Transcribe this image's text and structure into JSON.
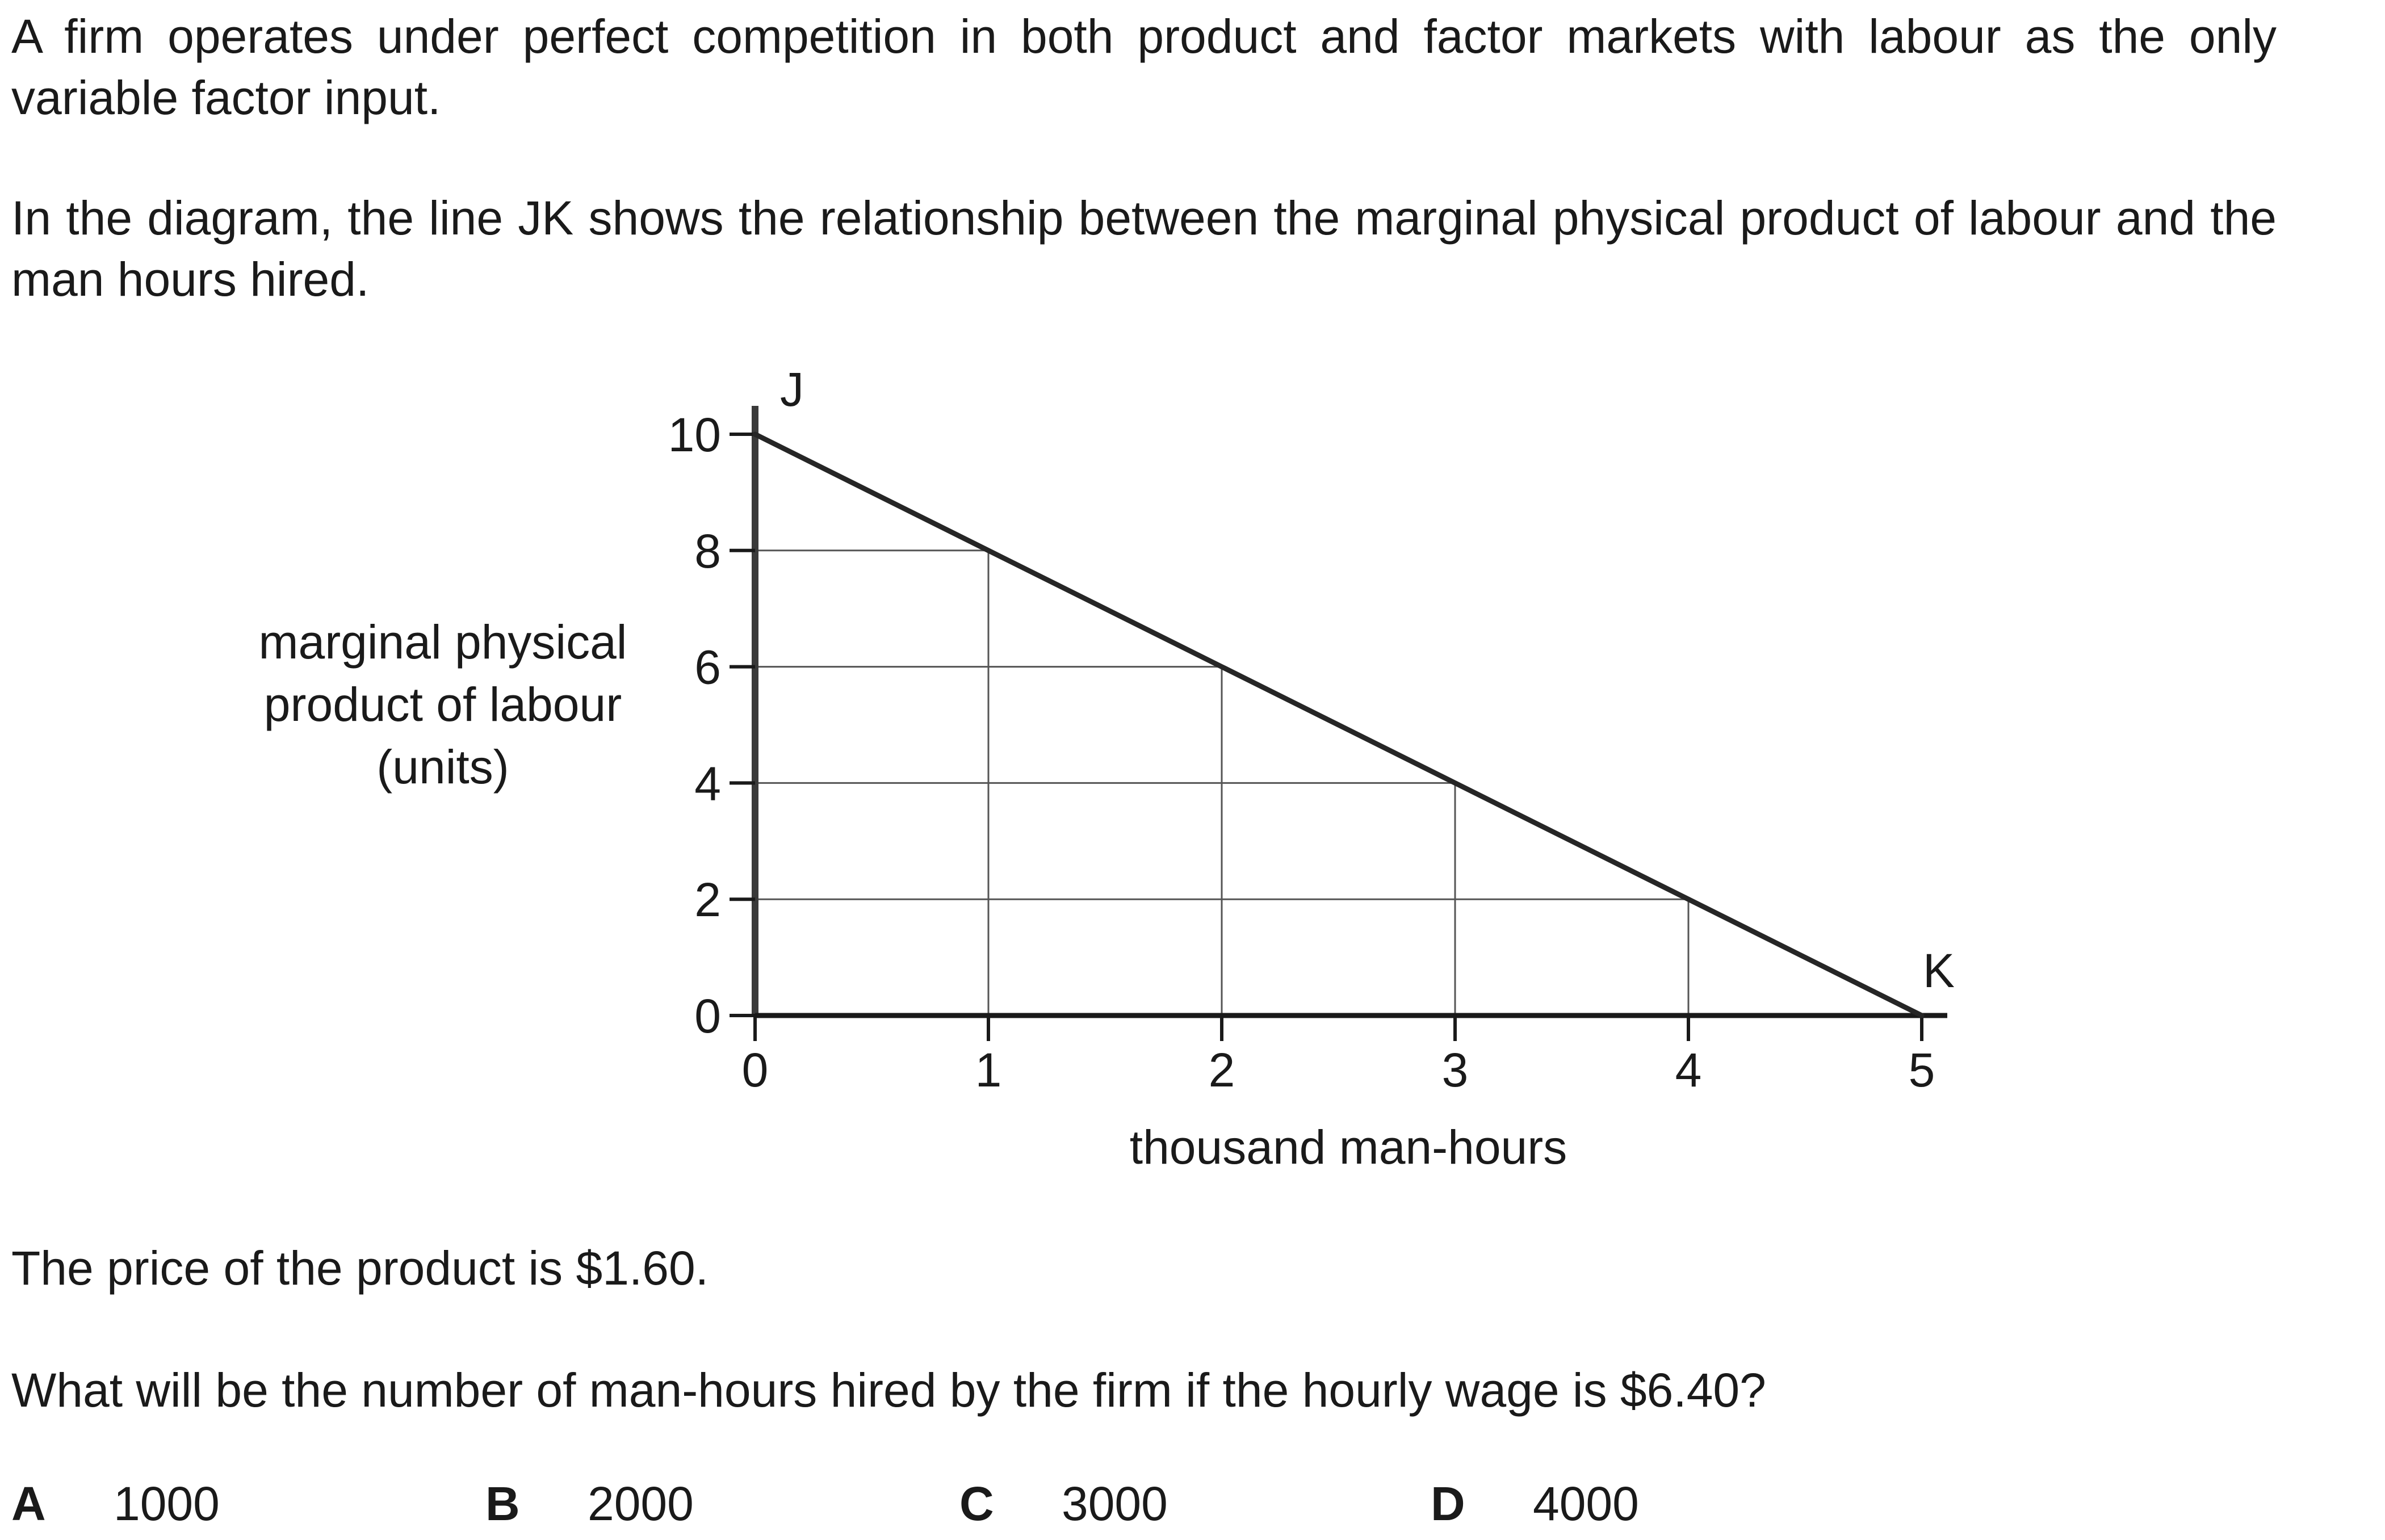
{
  "question": {
    "intro_1": "A firm operates under perfect competition in both product and factor markets with labour as the only variable factor input.",
    "intro_2": "In the diagram, the line JK shows the relationship between the marginal physical product of labour and the man hours hired.",
    "price_statement": "The price of the product is $1.60.",
    "prompt": "What will be the number of man-hours hired by the firm if the hourly wage is $6.40?"
  },
  "options": [
    {
      "letter": "A",
      "text": "1000"
    },
    {
      "letter": "B",
      "text": "2000"
    },
    {
      "letter": "C",
      "text": "3000"
    },
    {
      "letter": "D",
      "text": "4000"
    }
  ],
  "chart_data": {
    "type": "line",
    "title": "",
    "xlabel": "thousand man-hours",
    "ylabel_lines": [
      "marginal physical",
      "product of labour",
      "(units)"
    ],
    "x_ticks": [
      0,
      1,
      2,
      3,
      4,
      5
    ],
    "y_ticks": [
      0,
      2,
      4,
      6,
      8,
      10
    ],
    "xlim": [
      0,
      5
    ],
    "ylim": [
      0,
      10
    ],
    "series": [
      {
        "x": [
          0,
          1,
          2,
          3,
          4,
          5
        ],
        "y": [
          10,
          8,
          6,
          4,
          2,
          0
        ]
      }
    ],
    "point_labels": [
      {
        "label": "J",
        "x": 0,
        "y": 10
      },
      {
        "label": "K",
        "x": 5,
        "y": 0
      }
    ],
    "guide_lines": true,
    "line_color": "#262626",
    "guide_color": "#555555"
  }
}
